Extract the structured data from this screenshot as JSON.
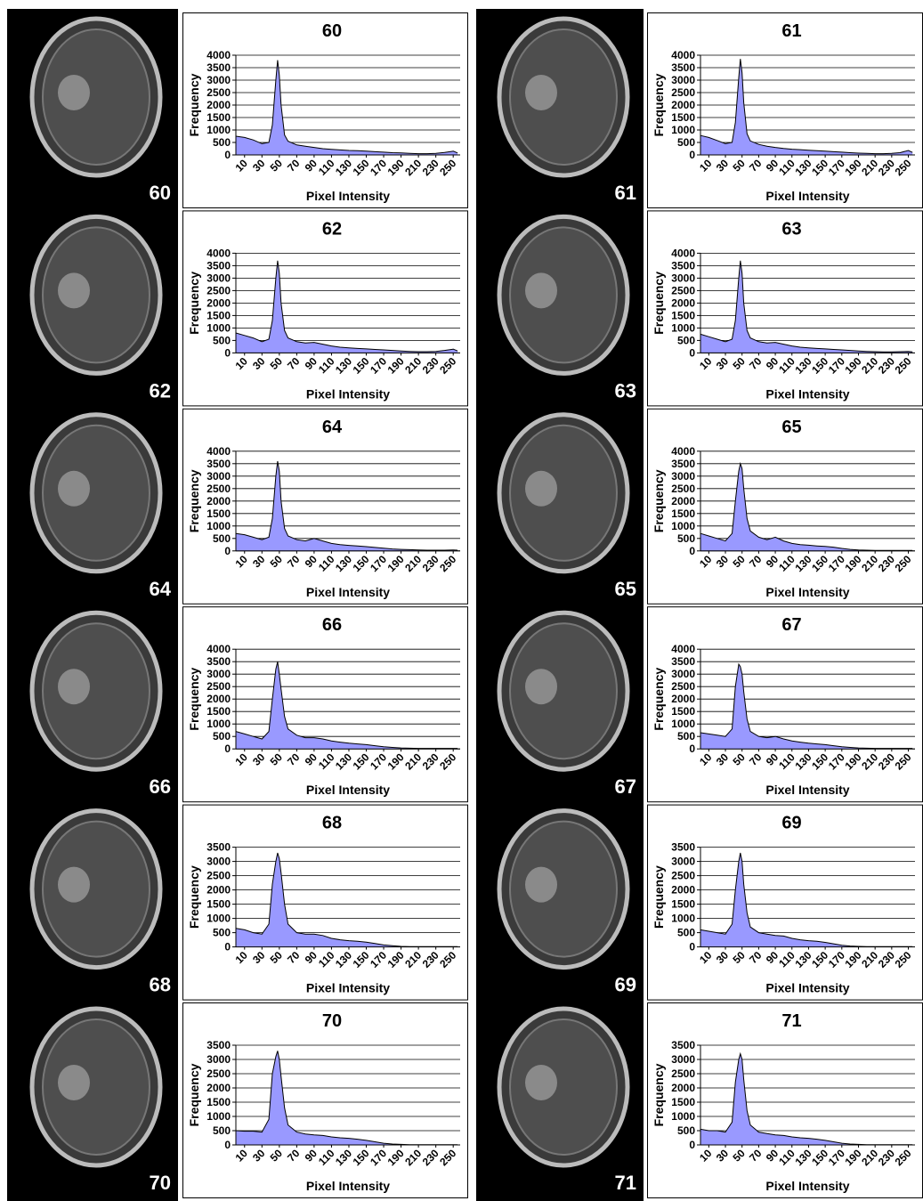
{
  "chart_data": [
    {
      "type": "area",
      "title": "60",
      "image_label": "60",
      "ylabel": "Frequency",
      "xlabel": "Pixel Intensity",
      "color": "#9999ff",
      "xlim": [
        0,
        258
      ],
      "xticks": [
        10,
        30,
        50,
        70,
        90,
        110,
        130,
        150,
        170,
        190,
        210,
        230,
        250
      ],
      "ylim": [
        0,
        4000
      ],
      "yticks": [
        0,
        500,
        1000,
        1500,
        2000,
        2500,
        3000,
        3500,
        4000
      ],
      "grid": true,
      "x": [
        0,
        10,
        20,
        30,
        38,
        42,
        46,
        48,
        50,
        52,
        56,
        60,
        70,
        80,
        90,
        100,
        110,
        120,
        130,
        140,
        150,
        160,
        170,
        180,
        190,
        200,
        210,
        220,
        230,
        240,
        250,
        255
      ],
      "values": [
        750,
        700,
        600,
        450,
        500,
        1200,
        3000,
        3800,
        3200,
        2000,
        800,
        550,
        400,
        350,
        300,
        250,
        220,
        200,
        180,
        170,
        150,
        130,
        110,
        90,
        80,
        60,
        50,
        50,
        60,
        100,
        150,
        80
      ]
    },
    {
      "type": "area",
      "title": "61",
      "image_label": "61",
      "ylabel": "Frequency",
      "xlabel": "Pixel Intensity",
      "color": "#9999ff",
      "xlim": [
        0,
        258
      ],
      "xticks": [
        10,
        30,
        50,
        70,
        90,
        110,
        130,
        150,
        170,
        190,
        210,
        230,
        250
      ],
      "ylim": [
        0,
        4000
      ],
      "yticks": [
        0,
        500,
        1000,
        1500,
        2000,
        2500,
        3000,
        3500,
        4000
      ],
      "grid": true,
      "x": [
        0,
        10,
        20,
        30,
        38,
        42,
        46,
        48,
        50,
        52,
        56,
        60,
        70,
        80,
        90,
        100,
        110,
        120,
        130,
        140,
        150,
        160,
        170,
        180,
        190,
        200,
        210,
        220,
        230,
        240,
        250,
        255
      ],
      "values": [
        780,
        700,
        580,
        450,
        500,
        1300,
        3100,
        3850,
        3300,
        2100,
        850,
        560,
        420,
        350,
        300,
        260,
        230,
        210,
        190,
        170,
        150,
        130,
        110,
        90,
        70,
        60,
        50,
        50,
        60,
        90,
        180,
        100
      ]
    },
    {
      "type": "area",
      "title": "62",
      "image_label": "62",
      "ylabel": "Frequency",
      "xlabel": "Pixel Intensity",
      "color": "#9999ff",
      "xlim": [
        0,
        258
      ],
      "xticks": [
        10,
        30,
        50,
        70,
        90,
        110,
        130,
        150,
        170,
        190,
        210,
        230,
        250
      ],
      "ylim": [
        0,
        4000
      ],
      "yticks": [
        0,
        500,
        1000,
        1500,
        2000,
        2500,
        3000,
        3500,
        4000
      ],
      "grid": true,
      "x": [
        0,
        10,
        20,
        30,
        38,
        42,
        46,
        48,
        50,
        52,
        56,
        60,
        70,
        80,
        90,
        100,
        110,
        120,
        130,
        140,
        150,
        160,
        170,
        180,
        190,
        200,
        210,
        220,
        230,
        240,
        250,
        255
      ],
      "values": [
        800,
        700,
        600,
        450,
        550,
        1300,
        3000,
        3700,
        3200,
        2000,
        900,
        600,
        450,
        400,
        420,
        350,
        280,
        230,
        200,
        180,
        160,
        140,
        120,
        100,
        80,
        60,
        50,
        50,
        60,
        100,
        150,
        80
      ]
    },
    {
      "type": "area",
      "title": "63",
      "image_label": "63",
      "ylabel": "Frequency",
      "xlabel": "Pixel Intensity",
      "color": "#9999ff",
      "xlim": [
        0,
        258
      ],
      "xticks": [
        10,
        30,
        50,
        70,
        90,
        110,
        130,
        150,
        170,
        190,
        210,
        230,
        250
      ],
      "ylim": [
        0,
        4000
      ],
      "yticks": [
        0,
        500,
        1000,
        1500,
        2000,
        2500,
        3000,
        3500,
        4000
      ],
      "grid": true,
      "x": [
        0,
        10,
        20,
        30,
        38,
        42,
        46,
        48,
        50,
        52,
        56,
        60,
        70,
        80,
        90,
        100,
        110,
        120,
        130,
        140,
        150,
        160,
        170,
        180,
        190,
        200,
        210,
        220,
        230,
        240,
        250,
        255
      ],
      "values": [
        750,
        650,
        550,
        450,
        550,
        1300,
        3000,
        3700,
        3200,
        2000,
        900,
        600,
        450,
        400,
        420,
        350,
        280,
        230,
        200,
        180,
        160,
        140,
        120,
        100,
        80,
        60,
        50,
        40,
        40,
        50,
        60,
        40
      ]
    },
    {
      "type": "area",
      "title": "64",
      "image_label": "64",
      "ylabel": "Frequency",
      "xlabel": "Pixel Intensity",
      "color": "#9999ff",
      "xlim": [
        0,
        258
      ],
      "xticks": [
        10,
        30,
        50,
        70,
        90,
        110,
        130,
        150,
        170,
        190,
        210,
        230,
        250
      ],
      "ylim": [
        0,
        4000
      ],
      "yticks": [
        0,
        500,
        1000,
        1500,
        2000,
        2500,
        3000,
        3500,
        4000
      ],
      "grid": true,
      "x": [
        0,
        10,
        20,
        30,
        38,
        42,
        46,
        48,
        50,
        52,
        56,
        60,
        70,
        80,
        90,
        100,
        110,
        120,
        130,
        140,
        150,
        160,
        170,
        180,
        190,
        200,
        210,
        220,
        230,
        240,
        250,
        255
      ],
      "values": [
        700,
        650,
        550,
        450,
        550,
        1300,
        3000,
        3600,
        3200,
        2000,
        900,
        600,
        450,
        400,
        500,
        400,
        300,
        250,
        220,
        200,
        170,
        140,
        110,
        80,
        60,
        50,
        40,
        30,
        30,
        30,
        40,
        30
      ]
    },
    {
      "type": "area",
      "title": "65",
      "image_label": "65",
      "ylabel": "Frequency",
      "xlabel": "Pixel Intensity",
      "color": "#9999ff",
      "xlim": [
        0,
        258
      ],
      "xticks": [
        10,
        30,
        50,
        70,
        90,
        110,
        130,
        150,
        170,
        190,
        210,
        230,
        250
      ],
      "ylim": [
        0,
        4000
      ],
      "yticks": [
        0,
        500,
        1000,
        1500,
        2000,
        2500,
        3000,
        3500,
        4000
      ],
      "grid": true,
      "x": [
        0,
        10,
        20,
        30,
        38,
        42,
        46,
        48,
        50,
        52,
        56,
        60,
        70,
        80,
        90,
        100,
        110,
        120,
        130,
        140,
        150,
        160,
        170,
        180,
        190,
        200,
        210,
        220,
        230,
        240,
        250,
        255
      ],
      "values": [
        700,
        600,
        500,
        400,
        700,
        2000,
        3200,
        3500,
        3300,
        2500,
        1300,
        800,
        550,
        450,
        550,
        400,
        300,
        250,
        230,
        200,
        180,
        150,
        100,
        60,
        40,
        30,
        20,
        20,
        20,
        20,
        20,
        20
      ]
    },
    {
      "type": "area",
      "title": "66",
      "image_label": "66",
      "ylabel": "Frequency",
      "xlabel": "Pixel Intensity",
      "color": "#9999ff",
      "xlim": [
        0,
        258
      ],
      "xticks": [
        10,
        30,
        50,
        70,
        90,
        110,
        130,
        150,
        170,
        190,
        210,
        230,
        250
      ],
      "ylim": [
        0,
        4000
      ],
      "yticks": [
        0,
        500,
        1000,
        1500,
        2000,
        2500,
        3000,
        3500,
        4000
      ],
      "grid": true,
      "x": [
        0,
        10,
        20,
        30,
        38,
        42,
        46,
        48,
        50,
        52,
        56,
        60,
        70,
        80,
        90,
        100,
        110,
        120,
        130,
        140,
        150,
        160,
        170,
        180,
        190,
        200,
        210,
        220,
        230,
        240,
        250,
        255
      ],
      "values": [
        700,
        600,
        500,
        400,
        700,
        2000,
        3200,
        3500,
        3000,
        2400,
        1300,
        800,
        550,
        450,
        450,
        400,
        320,
        270,
        230,
        200,
        170,
        130,
        90,
        60,
        40,
        30,
        20,
        20,
        20,
        20,
        20,
        20
      ]
    },
    {
      "type": "area",
      "title": "67",
      "image_label": "67",
      "ylabel": "Frequency",
      "xlabel": "Pixel Intensity",
      "color": "#9999ff",
      "xlim": [
        0,
        258
      ],
      "xticks": [
        10,
        30,
        50,
        70,
        90,
        110,
        130,
        150,
        170,
        190,
        210,
        230,
        250
      ],
      "ylim": [
        0,
        4000
      ],
      "yticks": [
        0,
        500,
        1000,
        1500,
        2000,
        2500,
        3000,
        3500,
        4000
      ],
      "grid": true,
      "x": [
        0,
        10,
        20,
        30,
        38,
        42,
        46,
        48,
        50,
        52,
        56,
        60,
        70,
        80,
        90,
        100,
        110,
        120,
        130,
        140,
        150,
        160,
        170,
        180,
        190,
        200,
        210,
        220,
        230,
        240,
        250,
        255
      ],
      "values": [
        650,
        600,
        550,
        500,
        800,
        2500,
        3400,
        3300,
        3000,
        2300,
        1200,
        700,
        500,
        450,
        500,
        400,
        320,
        270,
        230,
        200,
        170,
        130,
        90,
        60,
        40,
        30,
        20,
        20,
        20,
        20,
        20,
        20
      ]
    },
    {
      "type": "area",
      "title": "68",
      "image_label": "68",
      "ylabel": "Frequency",
      "xlabel": "Pixel Intensity",
      "color": "#9999ff",
      "xlim": [
        0,
        258
      ],
      "xticks": [
        10,
        30,
        50,
        70,
        90,
        110,
        130,
        150,
        170,
        190,
        210,
        230,
        250
      ],
      "ylim": [
        0,
        3500
      ],
      "yticks": [
        0,
        500,
        1000,
        1500,
        2000,
        2500,
        3000,
        3500
      ],
      "grid": true,
      "x": [
        0,
        10,
        20,
        30,
        38,
        42,
        46,
        48,
        50,
        52,
        56,
        60,
        70,
        80,
        90,
        100,
        110,
        120,
        130,
        140,
        150,
        160,
        170,
        180,
        190,
        200,
        210,
        220,
        230,
        240,
        250,
        255
      ],
      "values": [
        650,
        600,
        500,
        450,
        800,
        2200,
        3000,
        3300,
        3100,
        2600,
        1500,
        800,
        500,
        450,
        450,
        400,
        300,
        250,
        220,
        200,
        170,
        120,
        70,
        40,
        20,
        10,
        10,
        10,
        10,
        10,
        10,
        10
      ]
    },
    {
      "type": "area",
      "title": "69",
      "image_label": "69",
      "ylabel": "Frequency",
      "xlabel": "Pixel Intensity",
      "color": "#9999ff",
      "xlim": [
        0,
        258
      ],
      "xticks": [
        10,
        30,
        50,
        70,
        90,
        110,
        130,
        150,
        170,
        190,
        210,
        230,
        250
      ],
      "ylim": [
        0,
        3500
      ],
      "yticks": [
        0,
        500,
        1000,
        1500,
        2000,
        2500,
        3000,
        3500
      ],
      "grid": true,
      "x": [
        0,
        10,
        20,
        30,
        38,
        42,
        46,
        48,
        50,
        52,
        56,
        60,
        70,
        80,
        90,
        100,
        110,
        120,
        130,
        140,
        150,
        160,
        170,
        180,
        190,
        200,
        210,
        220,
        230,
        240,
        250,
        255
      ],
      "values": [
        600,
        550,
        500,
        450,
        800,
        2000,
        3000,
        3300,
        3000,
        2200,
        1200,
        700,
        500,
        450,
        400,
        380,
        300,
        250,
        220,
        200,
        160,
        110,
        60,
        30,
        20,
        10,
        10,
        10,
        10,
        10,
        10,
        10
      ]
    },
    {
      "type": "area",
      "title": "70",
      "image_label": "70",
      "ylabel": "Frequency",
      "xlabel": "Pixel Intensity",
      "color": "#9999ff",
      "xlim": [
        0,
        258
      ],
      "xticks": [
        10,
        30,
        50,
        70,
        90,
        110,
        130,
        150,
        170,
        190,
        210,
        230,
        250
      ],
      "ylim": [
        0,
        3500
      ],
      "yticks": [
        0,
        500,
        1000,
        1500,
        2000,
        2500,
        3000,
        3500
      ],
      "grid": true,
      "x": [
        0,
        10,
        20,
        30,
        38,
        42,
        46,
        48,
        50,
        52,
        56,
        60,
        70,
        80,
        90,
        100,
        110,
        120,
        130,
        140,
        150,
        160,
        170,
        180,
        190,
        200,
        210,
        220,
        230,
        240,
        250,
        255
      ],
      "values": [
        500,
        480,
        480,
        450,
        900,
        2500,
        3100,
        3300,
        3000,
        2400,
        1300,
        700,
        450,
        380,
        350,
        330,
        280,
        250,
        230,
        200,
        160,
        110,
        60,
        30,
        20,
        10,
        10,
        10,
        10,
        10,
        10,
        10
      ]
    },
    {
      "type": "area",
      "title": "71",
      "image_label": "71",
      "ylabel": "Frequency",
      "xlabel": "Pixel Intensity",
      "color": "#9999ff",
      "xlim": [
        0,
        258
      ],
      "xticks": [
        10,
        30,
        50,
        70,
        90,
        110,
        130,
        150,
        170,
        190,
        210,
        230,
        250
      ],
      "ylim": [
        0,
        3500
      ],
      "yticks": [
        0,
        500,
        1000,
        1500,
        2000,
        2500,
        3000,
        3500
      ],
      "grid": true,
      "x": [
        0,
        10,
        20,
        30,
        38,
        42,
        46,
        48,
        50,
        52,
        56,
        60,
        70,
        80,
        90,
        100,
        110,
        120,
        130,
        140,
        150,
        160,
        170,
        180,
        190,
        200,
        210,
        220,
        230,
        240,
        250,
        255
      ],
      "values": [
        550,
        500,
        500,
        450,
        800,
        2200,
        3000,
        3200,
        3000,
        2300,
        1200,
        700,
        450,
        400,
        350,
        330,
        280,
        250,
        230,
        200,
        160,
        110,
        60,
        30,
        20,
        10,
        10,
        10,
        10,
        10,
        10,
        10
      ]
    }
  ]
}
